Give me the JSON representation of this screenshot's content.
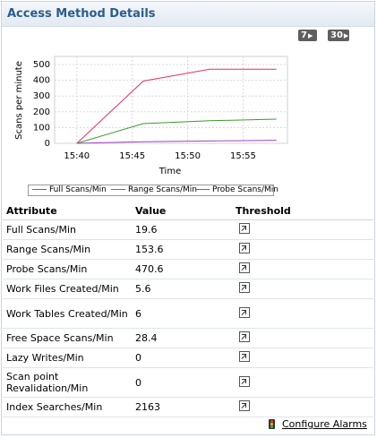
{
  "panel": {
    "title": "Access Method Details",
    "period_buttons": [
      "7",
      "30"
    ]
  },
  "chart_data": {
    "type": "line",
    "ylabel": "Scans per minute",
    "xlabel": "Time",
    "ylim": [
      0,
      500
    ],
    "yticks": [
      "0",
      "100",
      "200",
      "300",
      "400",
      "500"
    ],
    "xticks": [
      "15:40",
      "15:45",
      "15:50",
      "15:55"
    ],
    "grid": true,
    "legend_position": "bottom",
    "x": [
      "15:40",
      "15:46",
      "15:52",
      "15:58"
    ],
    "series": [
      {
        "name": "Full Scans/Min",
        "color": "#a040c8",
        "values": [
          0,
          10,
          15,
          19.6
        ]
      },
      {
        "name": "Range Scans/Min",
        "color": "#3a9a2a",
        "values": [
          0,
          125,
          143,
          153.6
        ]
      },
      {
        "name": "Probe Scans/Min",
        "color": "#e0306a",
        "values": [
          0,
          395,
          470.6,
          470.6
        ]
      }
    ]
  },
  "table": {
    "headers": [
      "Attribute",
      "Value",
      "Threshold"
    ],
    "rows": [
      {
        "attribute": "Full Scans/Min",
        "value": "19.6"
      },
      {
        "attribute": "Range Scans/Min",
        "value": "153.6"
      },
      {
        "attribute": "Probe Scans/Min",
        "value": "470.6"
      },
      {
        "attribute": "Work Files Created/Min",
        "value": "5.6"
      },
      {
        "attribute": "Work Tables Created/Min",
        "value": "6"
      },
      {
        "attribute": "Free Space Scans/Min",
        "value": "28.4"
      },
      {
        "attribute": "Lazy Writes/Min",
        "value": "0"
      },
      {
        "attribute": "Scan point Revalidation/Min",
        "value": "0"
      },
      {
        "attribute": "Index Searches/Min",
        "value": "2163"
      }
    ]
  },
  "footer": {
    "configure_alarms": "Configure Alarms"
  },
  "icons": {
    "period_arrow": "play-arrow-icon",
    "threshold": "edit-threshold-icon",
    "alarm": "traffic-light-icon"
  }
}
